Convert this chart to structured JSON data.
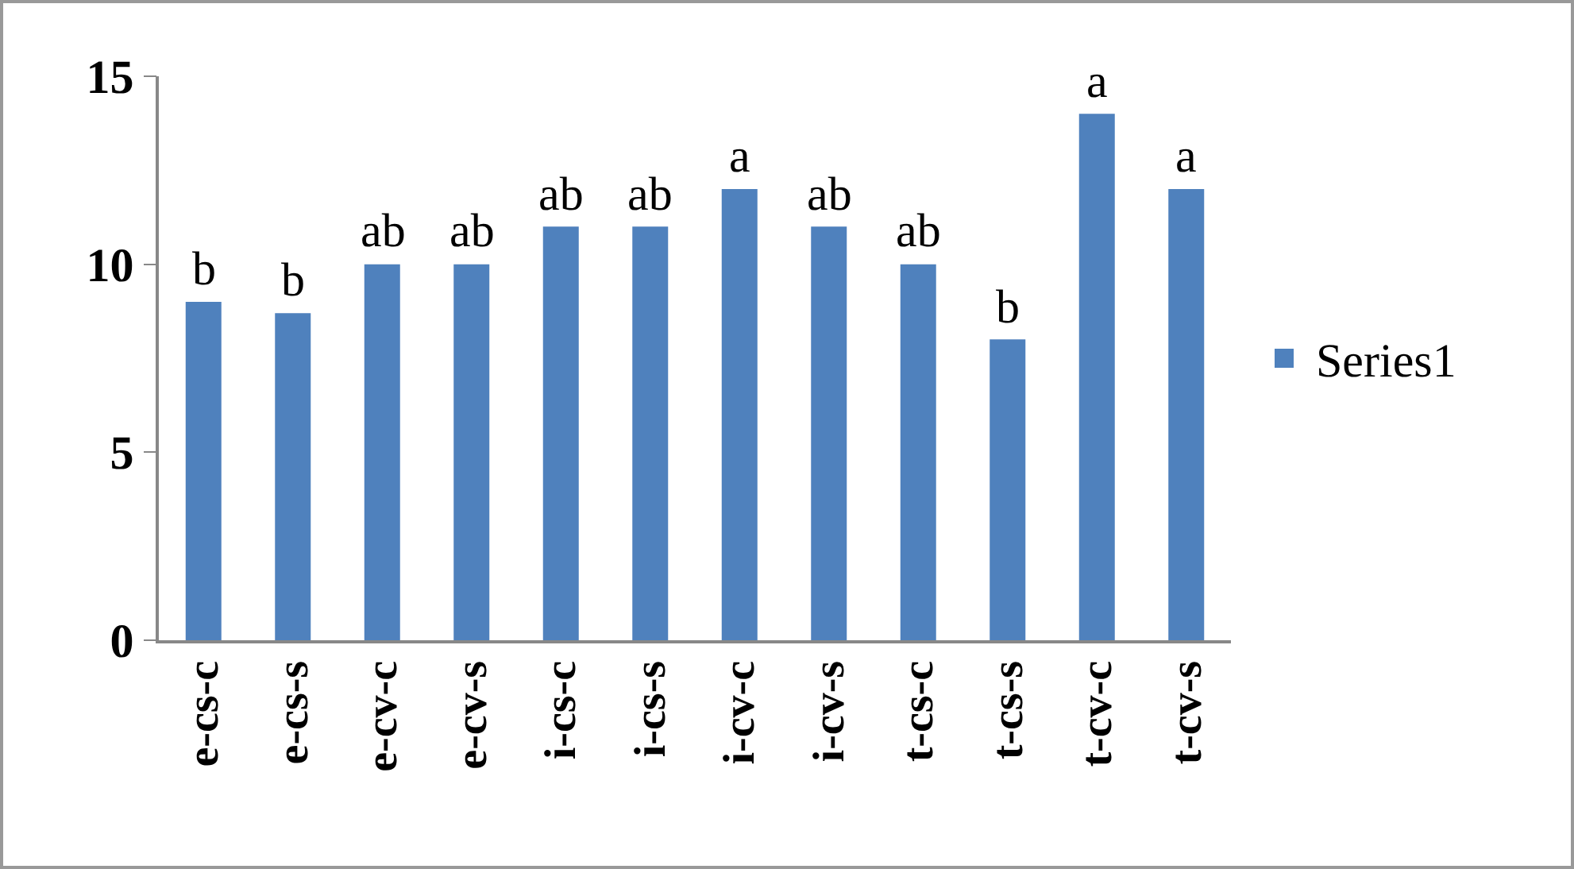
{
  "chart_data": {
    "type": "bar",
    "categories": [
      "e-cs-c",
      "e-cs-s",
      "e-cv-c",
      "e-cv-s",
      "i-cs-c",
      "i-cs-s",
      "i-cv-c",
      "i-cv-s",
      "t-cs-c",
      "t-cs-s",
      "t-cv-c",
      "t-cv-s"
    ],
    "series": [
      {
        "name": "Series1",
        "color": "#4f81bd",
        "values": [
          9,
          8.7,
          10,
          10,
          11,
          11,
          12,
          11,
          10,
          8,
          14,
          12
        ]
      }
    ],
    "ylim": [
      0,
      15
    ],
    "yticks": [
      0,
      5,
      10,
      15
    ],
    "grid": false,
    "legend": "right",
    "annotations": [
      {
        "text": "b",
        "x": "e-cs-c",
        "y": 9
      },
      {
        "text": "b",
        "x": "e-cs-s",
        "y": 8.7
      },
      {
        "text": "ab",
        "x": "e-cv-c",
        "y": 10
      },
      {
        "text": "ab",
        "x": "e-cv-s",
        "y": 10
      },
      {
        "text": "ab",
        "x": "i-cs-c",
        "y": 11
      },
      {
        "text": "ab",
        "x": "i-cs-s",
        "y": 11
      },
      {
        "text": "a",
        "x": "i-cv-c",
        "y": 12
      },
      {
        "text": "ab",
        "x": "i-cv-s",
        "y": 11
      },
      {
        "text": "ab",
        "x": "t-cs-c",
        "y": 10
      },
      {
        "text": "b",
        "x": "t-cs-s",
        "y": 8
      },
      {
        "text": "a",
        "x": "t-cv-c",
        "y": 14
      },
      {
        "text": "a",
        "x": "t-cv-s",
        "y": 12
      }
    ]
  }
}
